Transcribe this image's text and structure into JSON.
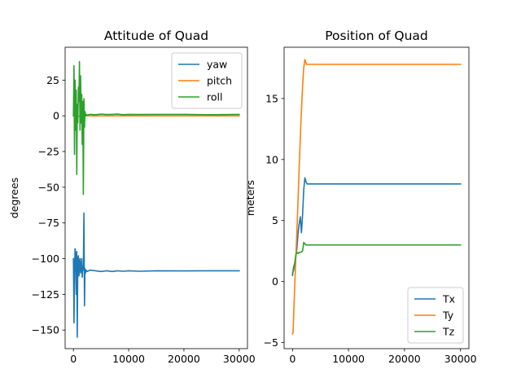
{
  "chart_data": [
    {
      "type": "line",
      "title": "Attitude of Quad",
      "xlabel": "",
      "ylabel": "degrees",
      "xlim": [
        -1500,
        31500
      ],
      "ylim": [
        -163,
        48
      ],
      "xticks": [
        0,
        10000,
        20000,
        30000
      ],
      "yticks": [
        25,
        0,
        -25,
        -50,
        -75,
        -100,
        -125,
        -150
      ],
      "grid": false,
      "legend": "upper right",
      "series": [
        {
          "name": "yaw",
          "color": "#1f77b4",
          "x": [
            0,
            100,
            200,
            300,
            400,
            500,
            600,
            700,
            800,
            900,
            1000,
            1100,
            1200,
            1300,
            1400,
            1500,
            1600,
            1700,
            1800,
            1900,
            2000,
            2100,
            2200,
            2300,
            2500,
            3000,
            4000,
            5000,
            6000,
            7000,
            8000,
            9000,
            10000,
            12000,
            15000,
            20000,
            25000,
            30000
          ],
          "y": [
            -100,
            -145,
            -110,
            -93,
            -98,
            -125,
            -95,
            -155,
            -100,
            -98,
            -112,
            -104,
            -100,
            -110,
            -107,
            -100,
            -113,
            -105,
            -108,
            -68,
            -133,
            -107,
            -110,
            -108,
            -109,
            -108,
            -108.5,
            -109,
            -108.5,
            -109,
            -108.5,
            -108.8,
            -108.5,
            -108.8,
            -108.5,
            -108.6,
            -108.5,
            -108.5
          ]
        },
        {
          "name": "pitch",
          "color": "#ff7f0e",
          "x": [
            0,
            500,
            1000,
            1500,
            2000,
            2500,
            5000,
            10000,
            20000,
            30000
          ],
          "y": [
            0,
            0.4,
            -0.3,
            0.2,
            0,
            0,
            0,
            0,
            0,
            0
          ]
        },
        {
          "name": "roll",
          "color": "#2ca02c",
          "x": [
            0,
            100,
            200,
            300,
            400,
            500,
            600,
            700,
            800,
            900,
            1000,
            1100,
            1200,
            1300,
            1400,
            1500,
            1600,
            1700,
            1800,
            1900,
            2000,
            2100,
            2200,
            2300,
            2500,
            3000,
            4000,
            5000,
            6000,
            7000,
            8000,
            9000,
            10000,
            12000,
            15000,
            20000,
            25000,
            30000
          ],
          "y": [
            0,
            35,
            -27,
            25,
            -10,
            18,
            -41,
            8,
            -5,
            20,
            10,
            38,
            -10,
            28,
            -5,
            15,
            -20,
            10,
            -55,
            12,
            -8,
            3,
            0,
            1,
            0.5,
            1,
            0.8,
            1.2,
            0.9,
            1,
            1.2,
            0.8,
            1,
            0.9,
            1,
            1,
            0.8,
            1
          ]
        }
      ]
    },
    {
      "type": "line",
      "title": "Position of Quad",
      "xlabel": "",
      "ylabel": "meters",
      "xlim": [
        -1500,
        31500
      ],
      "ylim": [
        -5.5,
        19.2
      ],
      "xticks": [
        0,
        10000,
        20000,
        30000
      ],
      "yticks": [
        15,
        10,
        5,
        0,
        -5
      ],
      "grid": false,
      "legend": "lower right",
      "series": [
        {
          "name": "Tx",
          "color": "#1f77b4",
          "x": [
            0,
            200,
            400,
            600,
            800,
            1000,
            1200,
            1400,
            1600,
            1800,
            2000,
            2200,
            2400,
            2600,
            3000,
            5000,
            10000,
            20000,
            30000
          ],
          "y": [
            0.5,
            1.2,
            1.5,
            2,
            2.8,
            4,
            4.8,
            5.3,
            4,
            5.5,
            7.5,
            8.5,
            8.2,
            8,
            8,
            8,
            8,
            8,
            8
          ]
        },
        {
          "name": "Ty",
          "color": "#ff7f0e",
          "x": [
            0,
            100,
            300,
            600,
            900,
            1200,
            1500,
            1800,
            2000,
            2200,
            2500,
            3000,
            5000,
            10000,
            20000,
            30000
          ],
          "y": [
            -4.3,
            -4.2,
            -1.5,
            2,
            5.5,
            9.5,
            13,
            16,
            17.5,
            18.2,
            17.8,
            17.8,
            17.8,
            17.8,
            17.8,
            17.8
          ]
        },
        {
          "name": "Tz",
          "color": "#2ca02c",
          "x": [
            0,
            200,
            400,
            600,
            800,
            1000,
            1200,
            1500,
            1800,
            2000,
            2200,
            2400,
            2600,
            3000,
            5000,
            10000,
            20000,
            30000
          ],
          "y": [
            0.7,
            0.9,
            1.5,
            2.2,
            2.4,
            2.3,
            2.4,
            2.4,
            2.5,
            3.2,
            3.1,
            3,
            3,
            3,
            3,
            3,
            3,
            3
          ]
        }
      ]
    }
  ]
}
